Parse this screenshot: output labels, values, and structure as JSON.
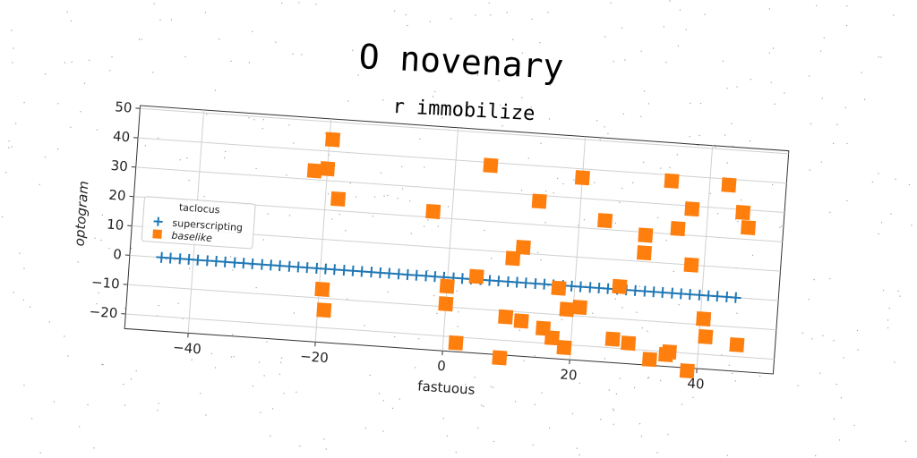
{
  "chart_data": {
    "type": "scatter",
    "title": "O novenary",
    "subtitle": "r immobilize",
    "xlabel": "fastuous",
    "ylabel": "optogram",
    "xlim": [
      -50,
      52
    ],
    "ylim": [
      -25,
      51
    ],
    "xticks": [
      -40,
      -20,
      0,
      20,
      40
    ],
    "yticks": [
      -20,
      -10,
      0,
      10,
      20,
      30,
      40,
      50
    ],
    "grid": true,
    "legend": {
      "title": "taclocus",
      "placement": "center-left"
    },
    "colors": {
      "superscripting": "#1f77b4",
      "baselike": "#ff7f0e"
    },
    "series": [
      {
        "name": "superscripting",
        "marker": "plus",
        "x": [
          -45,
          -43.6,
          -42.1,
          -40.7,
          -39.3,
          -37.8,
          -36.4,
          -35,
          -33.5,
          -32.1,
          -30.7,
          -29.2,
          -27.8,
          -26.4,
          -24.9,
          -23.5,
          -22.1,
          -20.6,
          -19.2,
          -17.8,
          -16.3,
          -14.9,
          -13.5,
          -12,
          -10.6,
          -9.2,
          -7.7,
          -6.3,
          -4.9,
          -3.4,
          -2,
          -0.6,
          0.9,
          2.3,
          3.7,
          5.2,
          6.6,
          8,
          9.5,
          10.9,
          12.3,
          13.8,
          15.2,
          16.6,
          18.1,
          19.5,
          20.9,
          22.4,
          23.8,
          25.2,
          26.7,
          28.1,
          29.5,
          31,
          32.4,
          33.8,
          35.3,
          36.7,
          38.1,
          39.6,
          41,
          42.4,
          43.9,
          45.3
        ],
        "y": [
          0,
          0,
          0,
          0,
          0,
          0,
          0,
          0,
          0,
          0,
          0,
          0,
          0,
          0,
          0,
          0,
          0,
          0,
          0,
          0,
          0,
          0,
          0,
          0,
          0,
          0,
          0,
          0,
          0,
          0,
          0,
          0,
          0,
          0,
          0,
          0,
          0,
          0,
          0,
          0,
          0,
          0,
          0,
          0,
          0,
          0,
          0,
          0,
          0,
          0,
          0,
          0,
          0,
          0,
          0,
          0,
          0,
          0,
          0,
          0,
          0,
          0,
          0,
          0
        ]
      },
      {
        "name": "baselike",
        "marker": "square",
        "x": [
          -22,
          -20,
          -19.5,
          -18,
          -19.5,
          -19,
          -3,
          0,
          0,
          2,
          4.5,
          5.5,
          9,
          9.5,
          10,
          11.5,
          12,
          13.5,
          15.5,
          17,
          17.5,
          19,
          19,
          20,
          21,
          24,
          26.5,
          27,
          29,
          30.5,
          30.5,
          32.5,
          34,
          35,
          35.5,
          35.5,
          37.5,
          38,
          38.5,
          40.5,
          41,
          43,
          45.5,
          46,
          46.5
        ],
        "y": [
          33,
          34,
          44,
          24,
          -7,
          -14,
          22,
          -3,
          -9,
          -22,
          1,
          39,
          -26,
          -12,
          8,
          12,
          -13,
          28,
          -15,
          -18,
          -1,
          -21,
          -8,
          37,
          -7,
          23,
          -17,
          1,
          -18,
          19,
          13,
          -23,
          38,
          -21,
          -20,
          22,
          29,
          10,
          -26,
          -8,
          -14,
          38,
          29,
          -16,
          24
        ]
      }
    ]
  }
}
